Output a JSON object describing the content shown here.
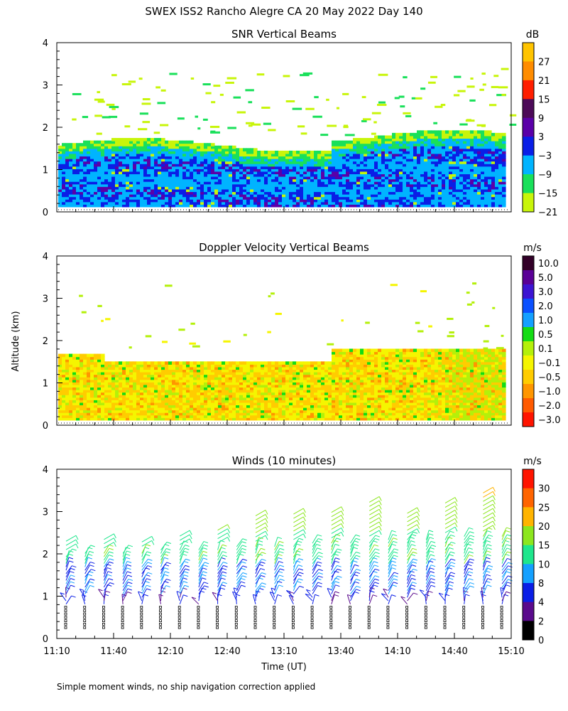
{
  "title": "SWEX ISS2 Rancho Alegre CA  20 May 2022 Day 140",
  "y_axis_label": "Altitude (km)",
  "x_axis_label": "Time (UT)",
  "footnote": "Simple moment winds, no ship navigation correction applied",
  "x_ticks": [
    "11:10",
    "11:40",
    "12:10",
    "12:40",
    "13:10",
    "13:40",
    "14:10",
    "14:40",
    "15:10"
  ],
  "y_ticks": [
    "0",
    "1",
    "2",
    "3",
    "4"
  ],
  "chart_data": [
    {
      "type": "heatmap",
      "title": "SNR Vertical Beams",
      "xlabel": "Time (UT)",
      "ylabel": "Altitude (km)",
      "xlim": [
        "11:10",
        "15:10"
      ],
      "ylim": [
        0,
        4
      ],
      "colorbar_unit": "dB",
      "colorbar_labels": [
        "27",
        "21",
        "15",
        "9",
        "3",
        "−3",
        "−9",
        "−15",
        "−21"
      ],
      "colorbar_colors": [
        "#ffc400",
        "#ff8c00",
        "#ff1e00",
        "#4c0a58",
        "#5a00a8",
        "#0a1ee6",
        "#00b4ff",
        "#19e05a",
        "#c8f50a"
      ],
      "description": "Strong returns below ~1.7 km, sparse echoes up to ~3.5 km"
    },
    {
      "type": "heatmap",
      "title": "Doppler Velocity Vertical Beams",
      "xlabel": "Time (UT)",
      "ylabel": "Altitude (km)",
      "xlim": [
        "11:10",
        "15:10"
      ],
      "ylim": [
        0,
        4
      ],
      "colorbar_unit": "m/s",
      "colorbar_labels": [
        "10.0",
        "5.0",
        "3.0",
        "2.0",
        "1.0",
        "0.5",
        "0.1",
        "−0.1",
        "−0.5",
        "−1.0",
        "−2.0",
        "−3.0"
      ],
      "colorbar_colors": [
        "#320028",
        "#5a0096",
        "#3c14d2",
        "#0a50ff",
        "#14a0ff",
        "#14dc14",
        "#b4f00a",
        "#f5f500",
        "#ffcc00",
        "#ff9600",
        "#ff5a00",
        "#ff1400"
      ],
      "description": "Mostly -0.1 to -1.0 m/s below ~1.7 km"
    },
    {
      "type": "scatter",
      "title": "Winds (10 minutes)",
      "xlabel": "Time (UT)",
      "ylabel": "Altitude (km)",
      "xlim": [
        "11:10",
        "15:10"
      ],
      "ylim": [
        0,
        4
      ],
      "colorbar_unit": "m/s",
      "colorbar_labels": [
        "30",
        "25",
        "20",
        "15",
        "10",
        "8",
        "4",
        "2",
        "0"
      ],
      "colorbar_colors": [
        "#ff1400",
        "#ff6400",
        "#ffb400",
        "#8ce61e",
        "#1ee68c",
        "#14a0ff",
        "#0a1ee6",
        "#5a0a8c",
        "#000000"
      ],
      "description": "Wind barb profiles every 10 minutes, speeds increasing with altitude"
    }
  ]
}
